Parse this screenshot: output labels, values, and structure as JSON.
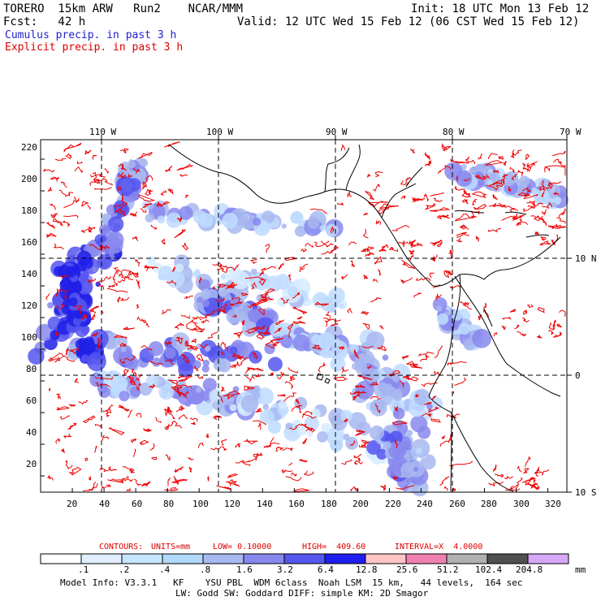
{
  "header": {
    "model": "TORERO  15km ARW   Run2    NCAR/MMM",
    "init": "Init: 18 UTC Mon 13 Feb 12",
    "fcst": "Fcst:   42 h",
    "valid": "Valid: 12 UTC Wed 15 Feb 12 (06 CST Wed 15 Feb 12)"
  },
  "legend": {
    "cumulus": "Cumulus precip. in past 3 h",
    "explicit": "Explicit precip. in past 3 h",
    "cumulus_color": "#3333ff",
    "explicit_color": "#ff0000"
  },
  "axes": {
    "top_lon": [
      "110 W",
      "100 W",
      "90 W",
      "80 W",
      "70 W"
    ],
    "right_lat": [
      "10 N",
      "0",
      "10 S"
    ],
    "left_y": [
      "220",
      "200",
      "180",
      "160",
      "140",
      "120",
      "100",
      "80",
      "60",
      "40",
      "20"
    ],
    "bottom_x": [
      "20",
      "40",
      "60",
      "80",
      "100",
      "120",
      "140",
      "160",
      "180",
      "200",
      "220",
      "240",
      "260",
      "280",
      "300",
      "320"
    ]
  },
  "contours": {
    "label": "CONTOURS:",
    "units": "UNITS=mm",
    "low": "LOW= 0.10000",
    "high": "HIGH=  409.60",
    "interval": "INTERVAL=X  4.0000"
  },
  "colorbar": {
    "labels": [
      ".1",
      ".2",
      ".4",
      ".8",
      "1.6",
      "3.2",
      "6.4",
      "12.8",
      "25.6",
      "51.2",
      "102.4",
      "204.8"
    ],
    "colors": [
      "#ffffff",
      "#e0eeff",
      "#c6e6ff",
      "#b0d8f8",
      "#a8b8f0",
      "#8888ee",
      "#5555f0",
      "#1e1ef0",
      "#ffc4c4",
      "#f080b0",
      "#b0b0b0",
      "#505050",
      "#d8a8f8"
    ],
    "unit": "mm"
  },
  "model_info": {
    "line1": "Model Info: V3.3.1   KF    YSU PBL  WDM 6class  Noah LSM  15 km,   44 levels,  164 sec",
    "line2": "LW: Godd SW: Goddard DIFF: simple KM: 2D Smagor"
  }
}
